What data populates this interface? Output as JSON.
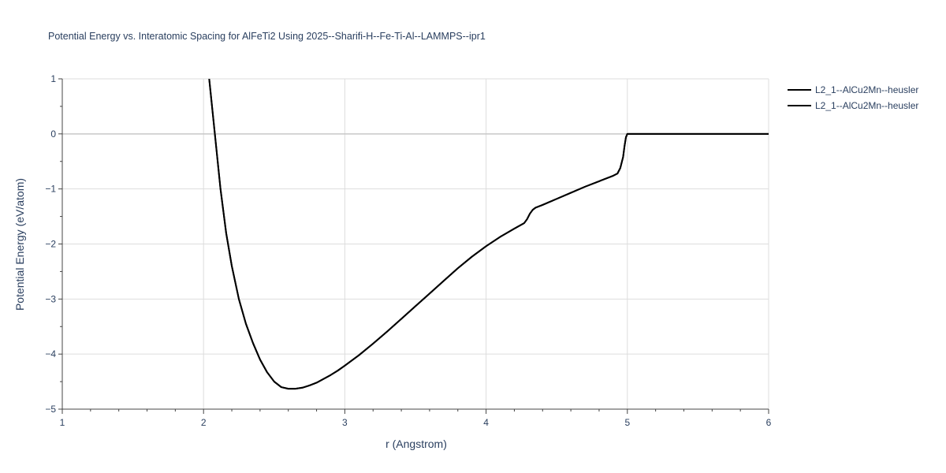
{
  "chart_data": {
    "type": "line",
    "title": "Potential Energy vs. Interatomic Spacing for AlFeTi2 Using 2025--Sharifi-H--Fe-Ti-Al--LAMMPS--ipr1",
    "xlabel": "r (Angstrom)",
    "ylabel": "Potential Energy (eV/atom)",
    "xlim": [
      1,
      6
    ],
    "ylim": [
      -5,
      1
    ],
    "x_ticks": [
      "1",
      "2",
      "3",
      "4",
      "5",
      "6"
    ],
    "y_ticks": [
      "1",
      "0",
      "−1",
      "−2",
      "−3",
      "−4",
      "−5"
    ],
    "grid": true,
    "legend_position": "top-right",
    "series": [
      {
        "name": "L2_1--AlCu2Mn--heusler",
        "color": "#000000",
        "x": [
          2.04,
          2.08,
          2.12,
          2.16,
          2.2,
          2.25,
          2.3,
          2.35,
          2.4,
          2.45,
          2.5,
          2.55,
          2.6,
          2.65,
          2.7,
          2.75,
          2.8,
          2.85,
          2.9,
          2.95,
          3.0,
          3.1,
          3.2,
          3.3,
          3.4,
          3.5,
          3.6,
          3.7,
          3.8,
          3.9,
          4.0,
          4.1,
          4.2,
          4.27,
          4.29,
          4.31,
          4.33,
          4.35,
          4.4,
          4.5,
          4.6,
          4.7,
          4.8,
          4.9,
          4.93,
          4.95,
          4.97,
          4.98,
          4.99,
          5.0,
          5.2,
          5.5,
          6.0
        ],
        "y": [
          1.0,
          0.0,
          -1.0,
          -1.8,
          -2.4,
          -3.0,
          -3.45,
          -3.8,
          -4.1,
          -4.33,
          -4.5,
          -4.6,
          -4.63,
          -4.63,
          -4.61,
          -4.57,
          -4.52,
          -4.45,
          -4.38,
          -4.3,
          -4.21,
          -4.02,
          -3.81,
          -3.59,
          -3.36,
          -3.13,
          -2.9,
          -2.67,
          -2.44,
          -2.23,
          -2.04,
          -1.87,
          -1.72,
          -1.62,
          -1.55,
          -1.45,
          -1.38,
          -1.34,
          -1.29,
          -1.18,
          -1.07,
          -0.96,
          -0.86,
          -0.76,
          -0.72,
          -0.62,
          -0.42,
          -0.22,
          -0.06,
          0.0,
          0.0,
          0.0,
          0.0
        ]
      },
      {
        "name": "L2_1--AlCu2Mn--heusler",
        "color": "#000000",
        "x": [
          2.04,
          2.08,
          2.12,
          2.16,
          2.2,
          2.25,
          2.3,
          2.35,
          2.4,
          2.45,
          2.5,
          2.55,
          2.6,
          2.65,
          2.7,
          2.75,
          2.8,
          2.85,
          2.9,
          2.95,
          3.0,
          3.1,
          3.2,
          3.3,
          3.4,
          3.5,
          3.6,
          3.7,
          3.8,
          3.9,
          4.0,
          4.1,
          4.2,
          4.27,
          4.29,
          4.31,
          4.33,
          4.35,
          4.4,
          4.5,
          4.6,
          4.7,
          4.8,
          4.9,
          4.93,
          4.95,
          4.97,
          4.98,
          4.99,
          5.0,
          5.2,
          5.5,
          6.0
        ],
        "y": [
          1.0,
          0.0,
          -1.0,
          -1.8,
          -2.4,
          -3.0,
          -3.45,
          -3.8,
          -4.1,
          -4.33,
          -4.5,
          -4.6,
          -4.63,
          -4.63,
          -4.61,
          -4.57,
          -4.52,
          -4.45,
          -4.38,
          -4.3,
          -4.21,
          -4.02,
          -3.81,
          -3.59,
          -3.36,
          -3.13,
          -2.9,
          -2.67,
          -2.44,
          -2.23,
          -2.04,
          -1.87,
          -1.72,
          -1.62,
          -1.55,
          -1.45,
          -1.38,
          -1.34,
          -1.29,
          -1.18,
          -1.07,
          -0.96,
          -0.86,
          -0.76,
          -0.72,
          -0.62,
          -0.42,
          -0.22,
          -0.06,
          0.0,
          0.0,
          0.0,
          0.0
        ]
      }
    ]
  }
}
